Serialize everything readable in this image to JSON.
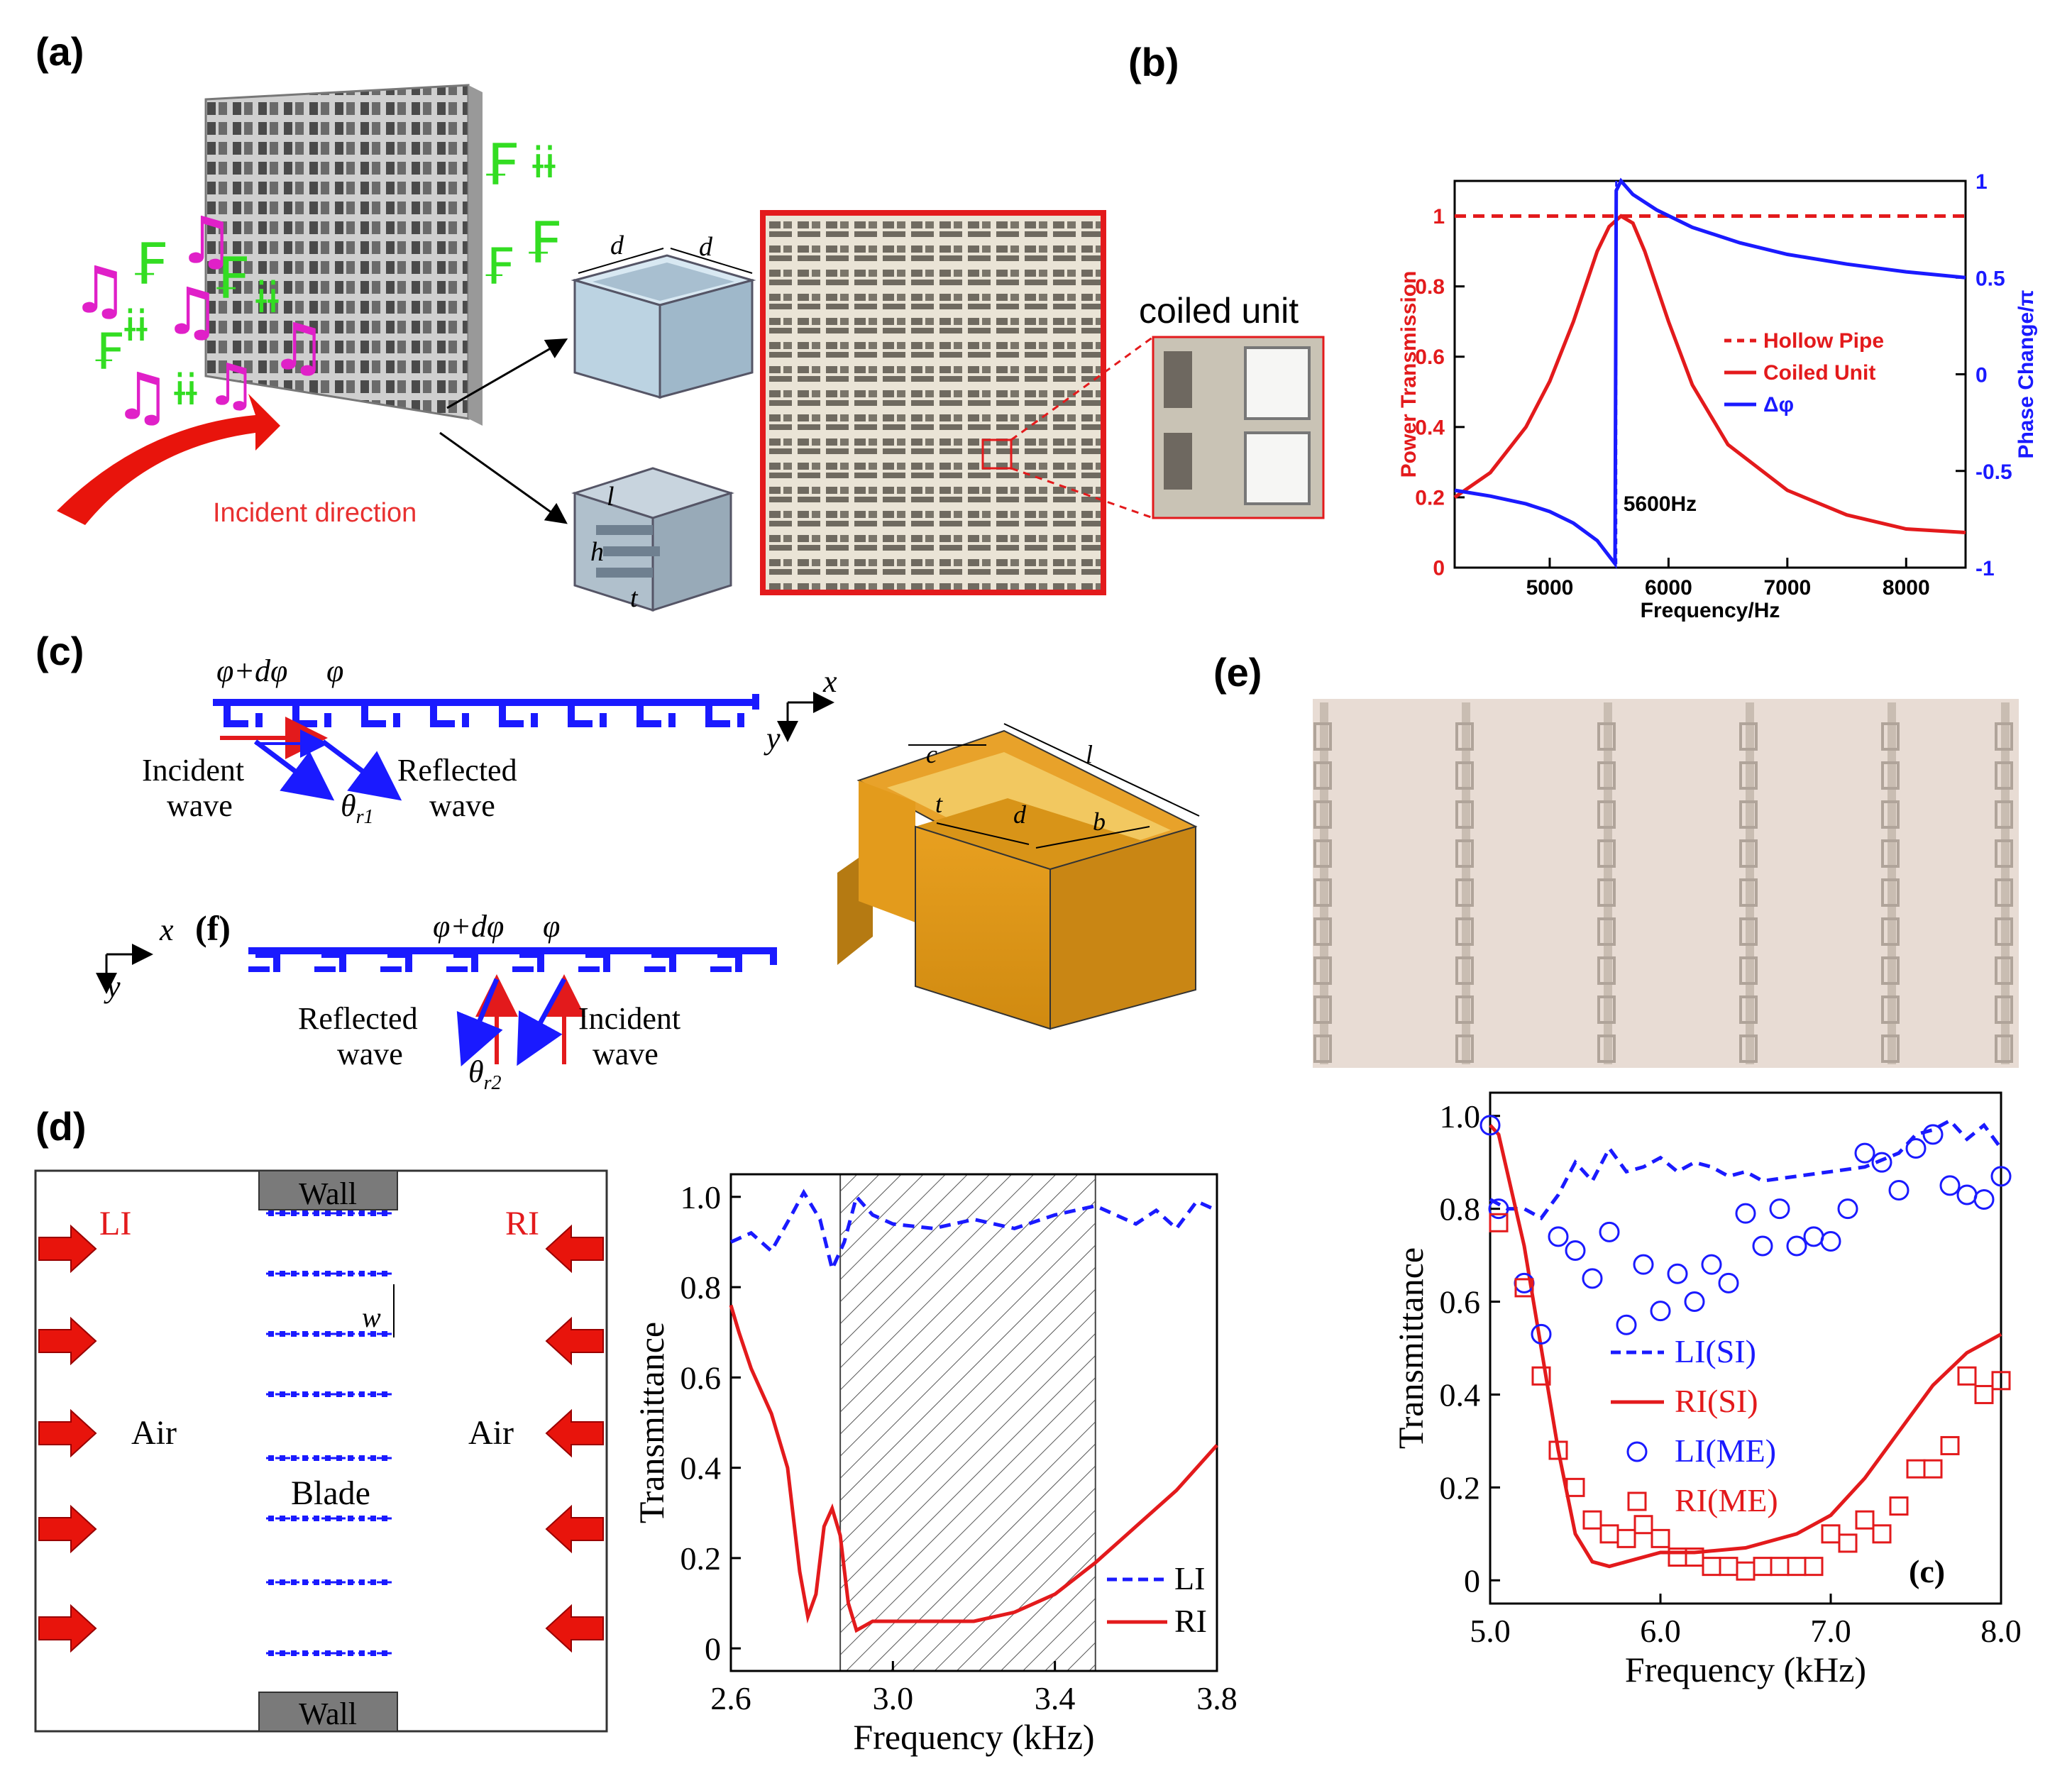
{
  "panels": {
    "a": {
      "label": "(a)",
      "coiled_unit": "coiled unit",
      "incident_direction": "Incident direction",
      "dim_d1": "d",
      "dim_d2": "d",
      "dim_l": "l",
      "dim_h": "h",
      "dim_t": "t"
    },
    "b": {
      "label": "(b)"
    },
    "c": {
      "label": "(c)",
      "phase1": "φ+dφ",
      "phase2": "φ",
      "axis_x": "x",
      "axis_y": "y",
      "incident1": "Incident",
      "incident2": "wave",
      "reflected1": "Reflected",
      "reflected2": "wave",
      "theta": "θ",
      "theta_sub": "r1",
      "dim_c": "c",
      "dim_l": "l",
      "dim_t": "t",
      "dim_d": "d",
      "dim_b": "b"
    },
    "f": {
      "label": "(f)",
      "phase1": "φ+dφ",
      "phase2": "φ",
      "axis_x": "x",
      "axis_y": "y",
      "reflected1": "Reflected",
      "reflected2": "wave",
      "incident1": "Incident",
      "incident2": "wave",
      "theta": "θ",
      "theta_sub": "r2"
    },
    "d": {
      "label": "(d)",
      "wall_top": "Wall",
      "wall_bottom": "Wall",
      "li": "LI",
      "ri": "RI",
      "air_left": "Air",
      "air_right": "Air",
      "blade": "Blade",
      "w": "w"
    },
    "e": {
      "label": "(e)"
    }
  },
  "chart_data": [
    {
      "id": "b",
      "type": "line",
      "xlabel": "Frequency/Hz",
      "ylabel": "Power Transmission",
      "ylabel_right": "Phase Change/π",
      "xlim": [
        4200,
        8500
      ],
      "ylim": [
        0,
        1.1
      ],
      "ylim_right": [
        -1,
        1
      ],
      "xticks": [
        "5000",
        "6000",
        "7000",
        "8000"
      ],
      "yticks": [
        "0",
        "0.2",
        "0.4",
        "0.6",
        "0.8",
        "1"
      ],
      "yticks_right": [
        "-1",
        "-0.5",
        "0",
        "0.5",
        "1"
      ],
      "annotation": "5600Hz",
      "legend": [
        "Hollow Pipe",
        "Coiled Unit",
        "Δφ"
      ],
      "series": [
        {
          "name": "Hollow Pipe",
          "axis": "left",
          "color": "#e31a1c",
          "dash": true,
          "x": [
            4200,
            8500
          ],
          "y": [
            1.0,
            1.0
          ]
        },
        {
          "name": "Coiled Unit",
          "axis": "left",
          "color": "#e31a1c",
          "x": [
            4200,
            4500,
            4800,
            5000,
            5200,
            5400,
            5500,
            5600,
            5700,
            5800,
            6000,
            6200,
            6500,
            7000,
            7500,
            8000,
            8500
          ],
          "y": [
            0.2,
            0.27,
            0.4,
            0.53,
            0.7,
            0.9,
            0.97,
            1.0,
            0.98,
            0.9,
            0.7,
            0.52,
            0.35,
            0.22,
            0.15,
            0.11,
            0.1
          ]
        },
        {
          "name": "Δφ",
          "axis": "right",
          "color": "#1a1aff",
          "x": [
            4200,
            4500,
            4800,
            5000,
            5200,
            5400,
            5550,
            5560,
            5600,
            5700,
            5900,
            6200,
            6600,
            7000,
            7500,
            8000,
            8500
          ],
          "y": [
            -0.6,
            -0.63,
            -0.67,
            -0.71,
            -0.77,
            -0.86,
            -0.98,
            0.95,
            1.0,
            0.93,
            0.85,
            0.76,
            0.68,
            0.62,
            0.57,
            0.53,
            0.5
          ]
        }
      ]
    },
    {
      "id": "d",
      "type": "line",
      "xlabel": "Frequency (kHz)",
      "ylabel": "Transmittance",
      "xlim": [
        2.6,
        3.8
      ],
      "ylim": [
        -0.05,
        1.05
      ],
      "xticks": [
        "2.6",
        "3.0",
        "3.4",
        "3.8"
      ],
      "yticks": [
        "0",
        "0.2",
        "0.4",
        "0.6",
        "0.8",
        "1.0"
      ],
      "shaded_band": [
        2.87,
        3.5
      ],
      "legend": [
        "LI",
        "RI"
      ],
      "series": [
        {
          "name": "LI",
          "color": "#1a1aff",
          "dash": true,
          "x": [
            2.6,
            2.65,
            2.7,
            2.75,
            2.78,
            2.82,
            2.85,
            2.88,
            2.91,
            2.95,
            3.0,
            3.1,
            3.2,
            3.3,
            3.4,
            3.5,
            3.6,
            3.65,
            3.7,
            3.75,
            3.8
          ],
          "y": [
            0.9,
            0.92,
            0.88,
            0.96,
            1.01,
            0.95,
            0.84,
            0.9,
            1.0,
            0.96,
            0.94,
            0.93,
            0.95,
            0.93,
            0.96,
            0.98,
            0.94,
            0.97,
            0.93,
            0.99,
            0.97
          ]
        },
        {
          "name": "RI",
          "color": "#e31a1c",
          "x": [
            2.6,
            2.62,
            2.65,
            2.7,
            2.74,
            2.77,
            2.79,
            2.81,
            2.83,
            2.85,
            2.87,
            2.89,
            2.91,
            2.93,
            2.95,
            3.0,
            3.1,
            3.2,
            3.3,
            3.4,
            3.5,
            3.6,
            3.7,
            3.8
          ],
          "y": [
            0.76,
            0.7,
            0.62,
            0.52,
            0.4,
            0.17,
            0.07,
            0.12,
            0.27,
            0.31,
            0.25,
            0.1,
            0.04,
            0.05,
            0.06,
            0.06,
            0.06,
            0.06,
            0.08,
            0.12,
            0.19,
            0.27,
            0.35,
            0.45
          ]
        }
      ]
    },
    {
      "id": "e",
      "type": "line",
      "xlabel": "Frequency (kHz)",
      "ylabel": "Transmittance",
      "xlim": [
        5.0,
        8.0
      ],
      "ylim": [
        -0.05,
        1.05
      ],
      "xticks": [
        "5.0",
        "6.0",
        "7.0",
        "8.0"
      ],
      "yticks": [
        "0",
        "0.2",
        "0.4",
        "0.6",
        "0.8",
        "1.0"
      ],
      "annotation": "(c)",
      "legend": [
        "LI(SI)",
        "RI(SI)",
        "LI(ME)",
        "RI(ME)"
      ],
      "series": [
        {
          "name": "LI(SI)",
          "color": "#1a1aff",
          "dash": true,
          "x": [
            5.0,
            5.1,
            5.2,
            5.3,
            5.4,
            5.5,
            5.6,
            5.7,
            5.8,
            5.9,
            6.0,
            6.1,
            6.2,
            6.3,
            6.4,
            6.5,
            6.6,
            6.8,
            7.0,
            7.2,
            7.4,
            7.5,
            7.6,
            7.7,
            7.8,
            7.9,
            8.0
          ],
          "y": [
            0.82,
            0.8,
            0.8,
            0.78,
            0.83,
            0.9,
            0.86,
            0.93,
            0.88,
            0.89,
            0.91,
            0.88,
            0.9,
            0.89,
            0.87,
            0.88,
            0.86,
            0.87,
            0.88,
            0.89,
            0.92,
            0.96,
            0.97,
            0.99,
            0.95,
            0.98,
            0.93
          ]
        },
        {
          "name": "RI(SI)",
          "color": "#e31a1c",
          "x": [
            5.0,
            5.05,
            5.1,
            5.2,
            5.3,
            5.4,
            5.5,
            5.6,
            5.7,
            5.8,
            6.0,
            6.2,
            6.5,
            6.8,
            7.0,
            7.2,
            7.4,
            7.6,
            7.8,
            8.0
          ],
          "y": [
            0.98,
            0.96,
            0.88,
            0.72,
            0.5,
            0.28,
            0.1,
            0.04,
            0.03,
            0.04,
            0.06,
            0.06,
            0.07,
            0.1,
            0.14,
            0.22,
            0.32,
            0.42,
            0.49,
            0.53
          ]
        },
        {
          "name": "LI(ME)",
          "color": "#1a1aff",
          "marker": "circle",
          "x": [
            5.0,
            5.05,
            5.2,
            5.3,
            5.4,
            5.5,
            5.6,
            5.7,
            5.8,
            5.9,
            6.0,
            6.1,
            6.2,
            6.3,
            6.4,
            6.5,
            6.6,
            6.7,
            6.8,
            6.9,
            7.0,
            7.1,
            7.2,
            7.3,
            7.4,
            7.5,
            7.6,
            7.7,
            7.8,
            7.9,
            8.0
          ],
          "y": [
            0.98,
            0.8,
            0.64,
            0.53,
            0.74,
            0.71,
            0.65,
            0.75,
            0.55,
            0.68,
            0.58,
            0.66,
            0.6,
            0.68,
            0.64,
            0.79,
            0.72,
            0.8,
            0.72,
            0.74,
            0.73,
            0.8,
            0.92,
            0.9,
            0.84,
            0.93,
            0.96,
            0.85,
            0.83,
            0.82,
            0.87
          ]
        },
        {
          "name": "RI(ME)",
          "color": "#e31a1c",
          "marker": "square",
          "x": [
            5.05,
            5.2,
            5.3,
            5.4,
            5.5,
            5.6,
            5.7,
            5.8,
            5.9,
            6.0,
            6.1,
            6.2,
            6.3,
            6.4,
            6.5,
            6.6,
            6.7,
            6.8,
            6.9,
            7.0,
            7.1,
            7.2,
            7.3,
            7.4,
            7.5,
            7.6,
            7.7,
            7.8,
            7.9,
            8.0
          ],
          "y": [
            0.77,
            0.63,
            0.44,
            0.28,
            0.2,
            0.13,
            0.1,
            0.09,
            0.12,
            0.09,
            0.05,
            0.05,
            0.03,
            0.03,
            0.02,
            0.03,
            0.03,
            0.03,
            0.03,
            0.1,
            0.08,
            0.13,
            0.1,
            0.16,
            0.24,
            0.24,
            0.29,
            0.44,
            0.4,
            0.43
          ]
        }
      ]
    }
  ]
}
